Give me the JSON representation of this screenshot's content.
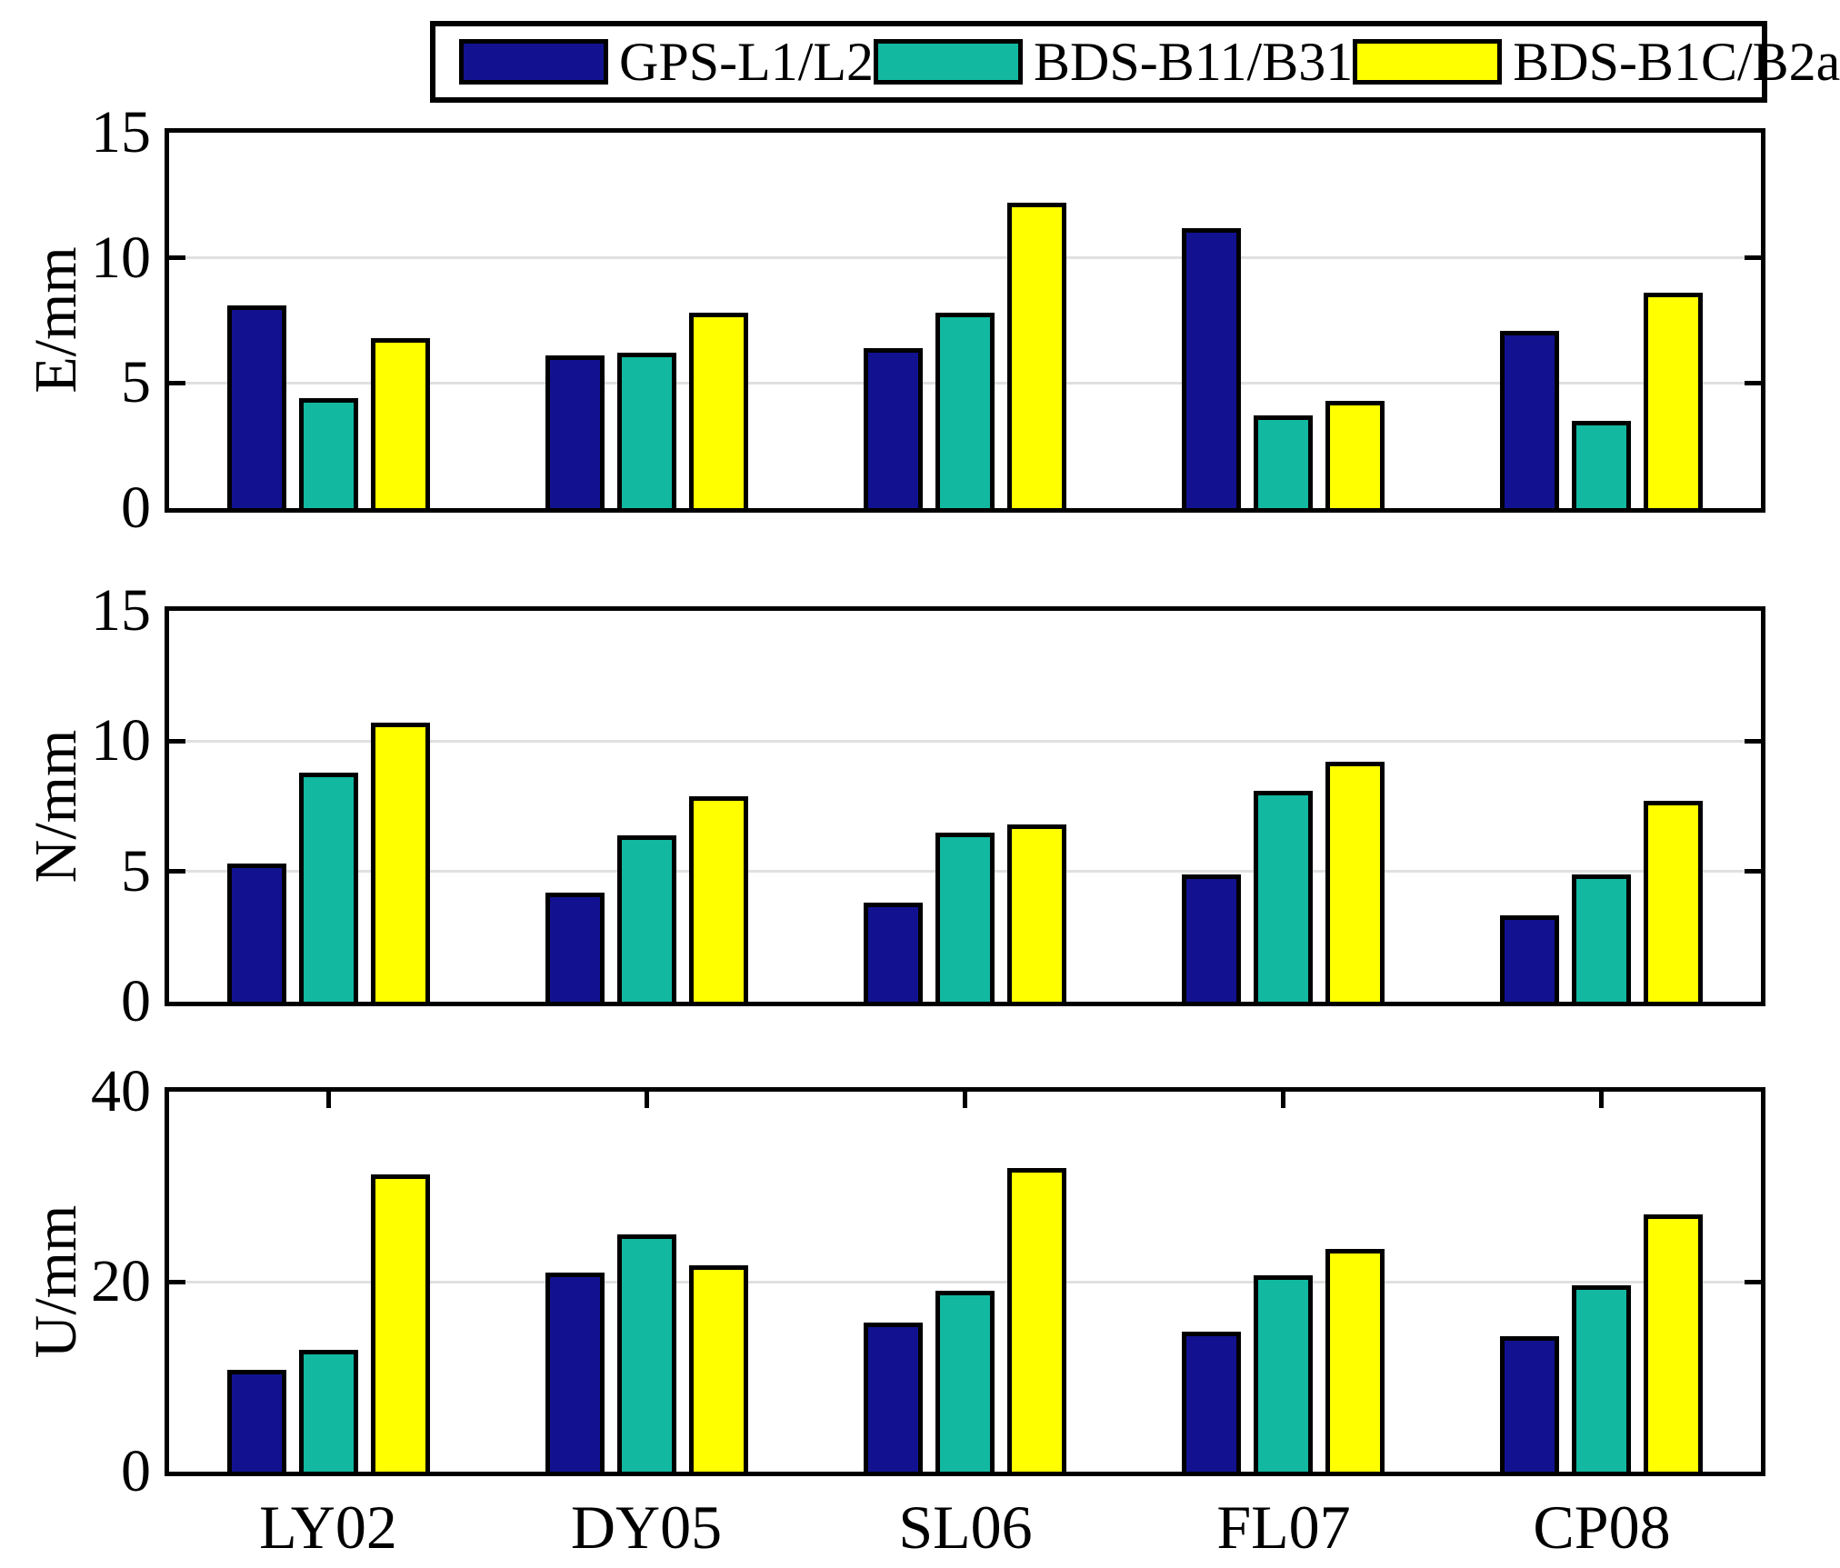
{
  "figure": {
    "background": "#ffffff"
  },
  "legend": {
    "entries": [
      {
        "label": "GPS-L1/L2",
        "color": "#121290"
      },
      {
        "label": "BDS-B11/B31",
        "color": "#12b8a0"
      },
      {
        "label": "BDS-B1C/B2a",
        "color": "#ffff00"
      }
    ]
  },
  "x_axis": {
    "categories": [
      "LY02",
      "DY05",
      "SL06",
      "FL07",
      "CP08"
    ]
  },
  "chart_data": [
    {
      "type": "bar",
      "panel": "E",
      "ylabel": "E/mm",
      "ylim": [
        0,
        15
      ],
      "yticks": [
        0,
        5,
        10,
        15
      ],
      "gridlines": [
        5,
        10
      ],
      "top_ticks": false,
      "legend_position": "top",
      "grid": "horizontal-only",
      "categories": [
        "LY02",
        "DY05",
        "SL06",
        "FL07",
        "CP08"
      ],
      "series": [
        {
          "name": "GPS-L1/L2",
          "color": "#121290",
          "values": [
            8.1,
            6.1,
            6.4,
            11.2,
            7.1
          ]
        },
        {
          "name": "BDS-B11/B31",
          "color": "#12b8a0",
          "values": [
            4.4,
            6.2,
            7.8,
            3.7,
            3.5
          ]
        },
        {
          "name": "BDS-B1C/B2a",
          "color": "#ffff00",
          "values": [
            6.8,
            7.8,
            12.2,
            4.3,
            8.6
          ]
        }
      ]
    },
    {
      "type": "bar",
      "panel": "N",
      "ylabel": "N/mm",
      "ylim": [
        0,
        15
      ],
      "yticks": [
        0,
        5,
        10,
        15
      ],
      "gridlines": [
        5,
        10
      ],
      "top_ticks": false,
      "grid": "horizontal-only",
      "categories": [
        "LY02",
        "DY05",
        "SL06",
        "FL07",
        "CP08"
      ],
      "series": [
        {
          "name": "GPS-L1/L2",
          "color": "#121290",
          "values": [
            5.3,
            4.2,
            3.8,
            4.9,
            3.3
          ]
        },
        {
          "name": "BDS-B11/B31",
          "color": "#12b8a0",
          "values": [
            8.8,
            6.4,
            6.5,
            8.1,
            4.9
          ]
        },
        {
          "name": "BDS-B1C/B2a",
          "color": "#ffff00",
          "values": [
            10.7,
            7.9,
            6.8,
            9.2,
            7.7
          ]
        }
      ]
    },
    {
      "type": "bar",
      "panel": "U",
      "ylabel": "U/mm",
      "ylim": [
        0,
        40
      ],
      "yticks": [
        0,
        20,
        40
      ],
      "gridlines": [
        20
      ],
      "top_ticks": true,
      "grid": "horizontal-only",
      "categories": [
        "LY02",
        "DY05",
        "SL06",
        "FL07",
        "CP08"
      ],
      "series": [
        {
          "name": "GPS-L1/L2",
          "color": "#121290",
          "values": [
            10.7,
            21.0,
            15.7,
            14.7,
            14.3
          ]
        },
        {
          "name": "BDS-B11/B31",
          "color": "#12b8a0",
          "values": [
            12.8,
            25.0,
            19.0,
            20.7,
            19.6
          ]
        },
        {
          "name": "BDS-B1C/B2a",
          "color": "#ffff00",
          "values": [
            31.3,
            21.7,
            32.0,
            23.4,
            27.1
          ]
        }
      ]
    }
  ]
}
